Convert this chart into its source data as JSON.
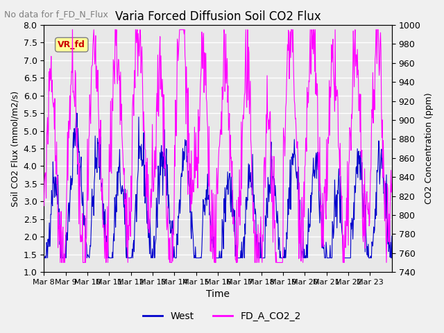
{
  "title": "Varia Forced Diffusion Soil CO2 Flux",
  "no_data_text": "No data for f_FD_N_Flux",
  "xlabel": "Time",
  "ylabel_left": "Soil CO2 Flux (mmol/m2/s)",
  "ylabel_right": "CO2 Concentration (ppm)",
  "ylim_left": [
    1.0,
    8.0
  ],
  "ylim_right": [
    740,
    1000
  ],
  "yticks_left": [
    1.0,
    1.5,
    2.0,
    2.5,
    3.0,
    3.5,
    4.0,
    4.5,
    5.0,
    5.5,
    6.0,
    6.5,
    7.0,
    7.5,
    8.0
  ],
  "yticks_right": [
    740,
    760,
    780,
    800,
    820,
    840,
    860,
    880,
    900,
    920,
    940,
    960,
    980,
    1000
  ],
  "xtick_labels": [
    "Mar 8",
    "Mar 9",
    "Mar 10",
    "Mar 11",
    "Mar 12",
    "Mar 13",
    "Mar 14",
    "Mar 15",
    "Mar 16",
    "Mar 17",
    "Mar 18",
    "Mar 19",
    "Mar 20",
    "Mar 21",
    "Mar 22",
    "Mar 23"
  ],
  "legend_entries": [
    "West",
    "FD_A_CO2_2"
  ],
  "annotation_text": "VR_fd",
  "annotation_color": "#cc0000",
  "annotation_bg": "#ffff99",
  "background_color": "#f0f0f0",
  "blue_color": "#0000cc",
  "magenta_color": "#ff00ff",
  "seed": 42,
  "n_days": 16,
  "points_per_day": 48
}
